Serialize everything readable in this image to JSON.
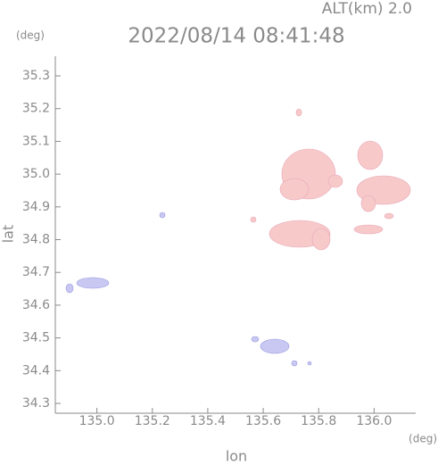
{
  "chart_data": {
    "type": "map",
    "title": "2022/08/14 08:41:48",
    "subtitle": "ALT(km) 2.0",
    "y_unit": "(deg)",
    "x_unit": "(deg)",
    "xlabel": "lon",
    "ylabel": "lat",
    "xlim": [
      134.85,
      136.15
    ],
    "ylim": [
      34.27,
      35.36
    ],
    "xticks": [
      {
        "value": 135,
        "label": "135.0"
      },
      135.2,
      135.4,
      135.6,
      135.8,
      {
        "value": 136,
        "label": "136.0"
      }
    ],
    "yticks": [
      34.3,
      34.4,
      34.5,
      34.6,
      34.7,
      34.8,
      34.9,
      {
        "value": 35,
        "label": "35.0"
      },
      35.1,
      35.2,
      35.3
    ]
  }
}
